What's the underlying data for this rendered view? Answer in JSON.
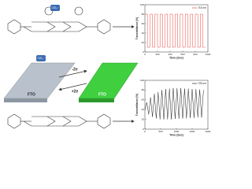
{
  "figure": {
    "anions": [
      "ClO₄⁻",
      "ClO₄⁻"
    ],
    "electrons": [
      "-2e",
      "+2e"
    ],
    "electrodes": [
      "FTO",
      "FTO"
    ]
  },
  "chart_data": [
    {
      "type": "line",
      "xlabel": "Time (Sec)",
      "ylabel": "Transmittance (%)",
      "x": [
        0,
        40,
        40,
        80,
        80,
        120,
        120,
        160,
        160,
        200,
        200,
        240,
        240,
        280,
        280,
        320,
        320,
        360,
        360,
        400,
        400,
        440,
        440,
        480,
        480,
        520,
        520,
        560,
        560,
        600,
        600,
        640,
        640,
        680,
        680,
        720,
        720,
        760,
        760,
        800,
        800,
        840,
        840,
        880,
        880,
        920,
        920,
        960
      ],
      "series": [
        {
          "name": "715 nm",
          "color": "#e8483f",
          "values": [
            80,
            80,
            10,
            10,
            80,
            80,
            10,
            10,
            80,
            80,
            10,
            10,
            80,
            80,
            10,
            10,
            80,
            80,
            10,
            10,
            80,
            80,
            10,
            10,
            80,
            80,
            10,
            10,
            80,
            80,
            10,
            10,
            80,
            80,
            10,
            10,
            80,
            80,
            10,
            10,
            80,
            80,
            10,
            10,
            80,
            80,
            10,
            10
          ]
        }
      ],
      "xlim": [
        0,
        1000
      ],
      "xticks": [
        0,
        200,
        400,
        600,
        800,
        1000
      ],
      "ylim": [
        0,
        100
      ],
      "yticks": [
        0,
        20,
        40,
        60,
        80,
        100
      ],
      "legend": "upper right"
    },
    {
      "type": "line",
      "xlabel": "Time (Sec)",
      "ylabel": "Transmittance (%)",
      "x": [
        0,
        60,
        120,
        180,
        240,
        300,
        360,
        420,
        480,
        540,
        600,
        660,
        720,
        780,
        840,
        900,
        960,
        1020,
        1080,
        1140,
        1200,
        1260,
        1320,
        1380,
        1440,
        1500,
        1560,
        1620,
        1680,
        1740,
        1800,
        1860
      ],
      "series": [
        {
          "name": "725 nm",
          "color": "#222222",
          "values": [
            40,
            55,
            30,
            65,
            25,
            72,
            22,
            76,
            20,
            80,
            20,
            82,
            20,
            83,
            20,
            84,
            21,
            84,
            21,
            84,
            22,
            83,
            22,
            83,
            23,
            82,
            23,
            82,
            24,
            81,
            24,
            80
          ]
        }
      ],
      "xlim": [
        0,
        2000
      ],
      "xticks": [
        0,
        500,
        1000,
        1500,
        2000
      ],
      "ylim": [
        0,
        100
      ],
      "yticks": [
        0,
        20,
        40,
        60,
        80,
        100
      ],
      "legend": "upper right"
    }
  ]
}
